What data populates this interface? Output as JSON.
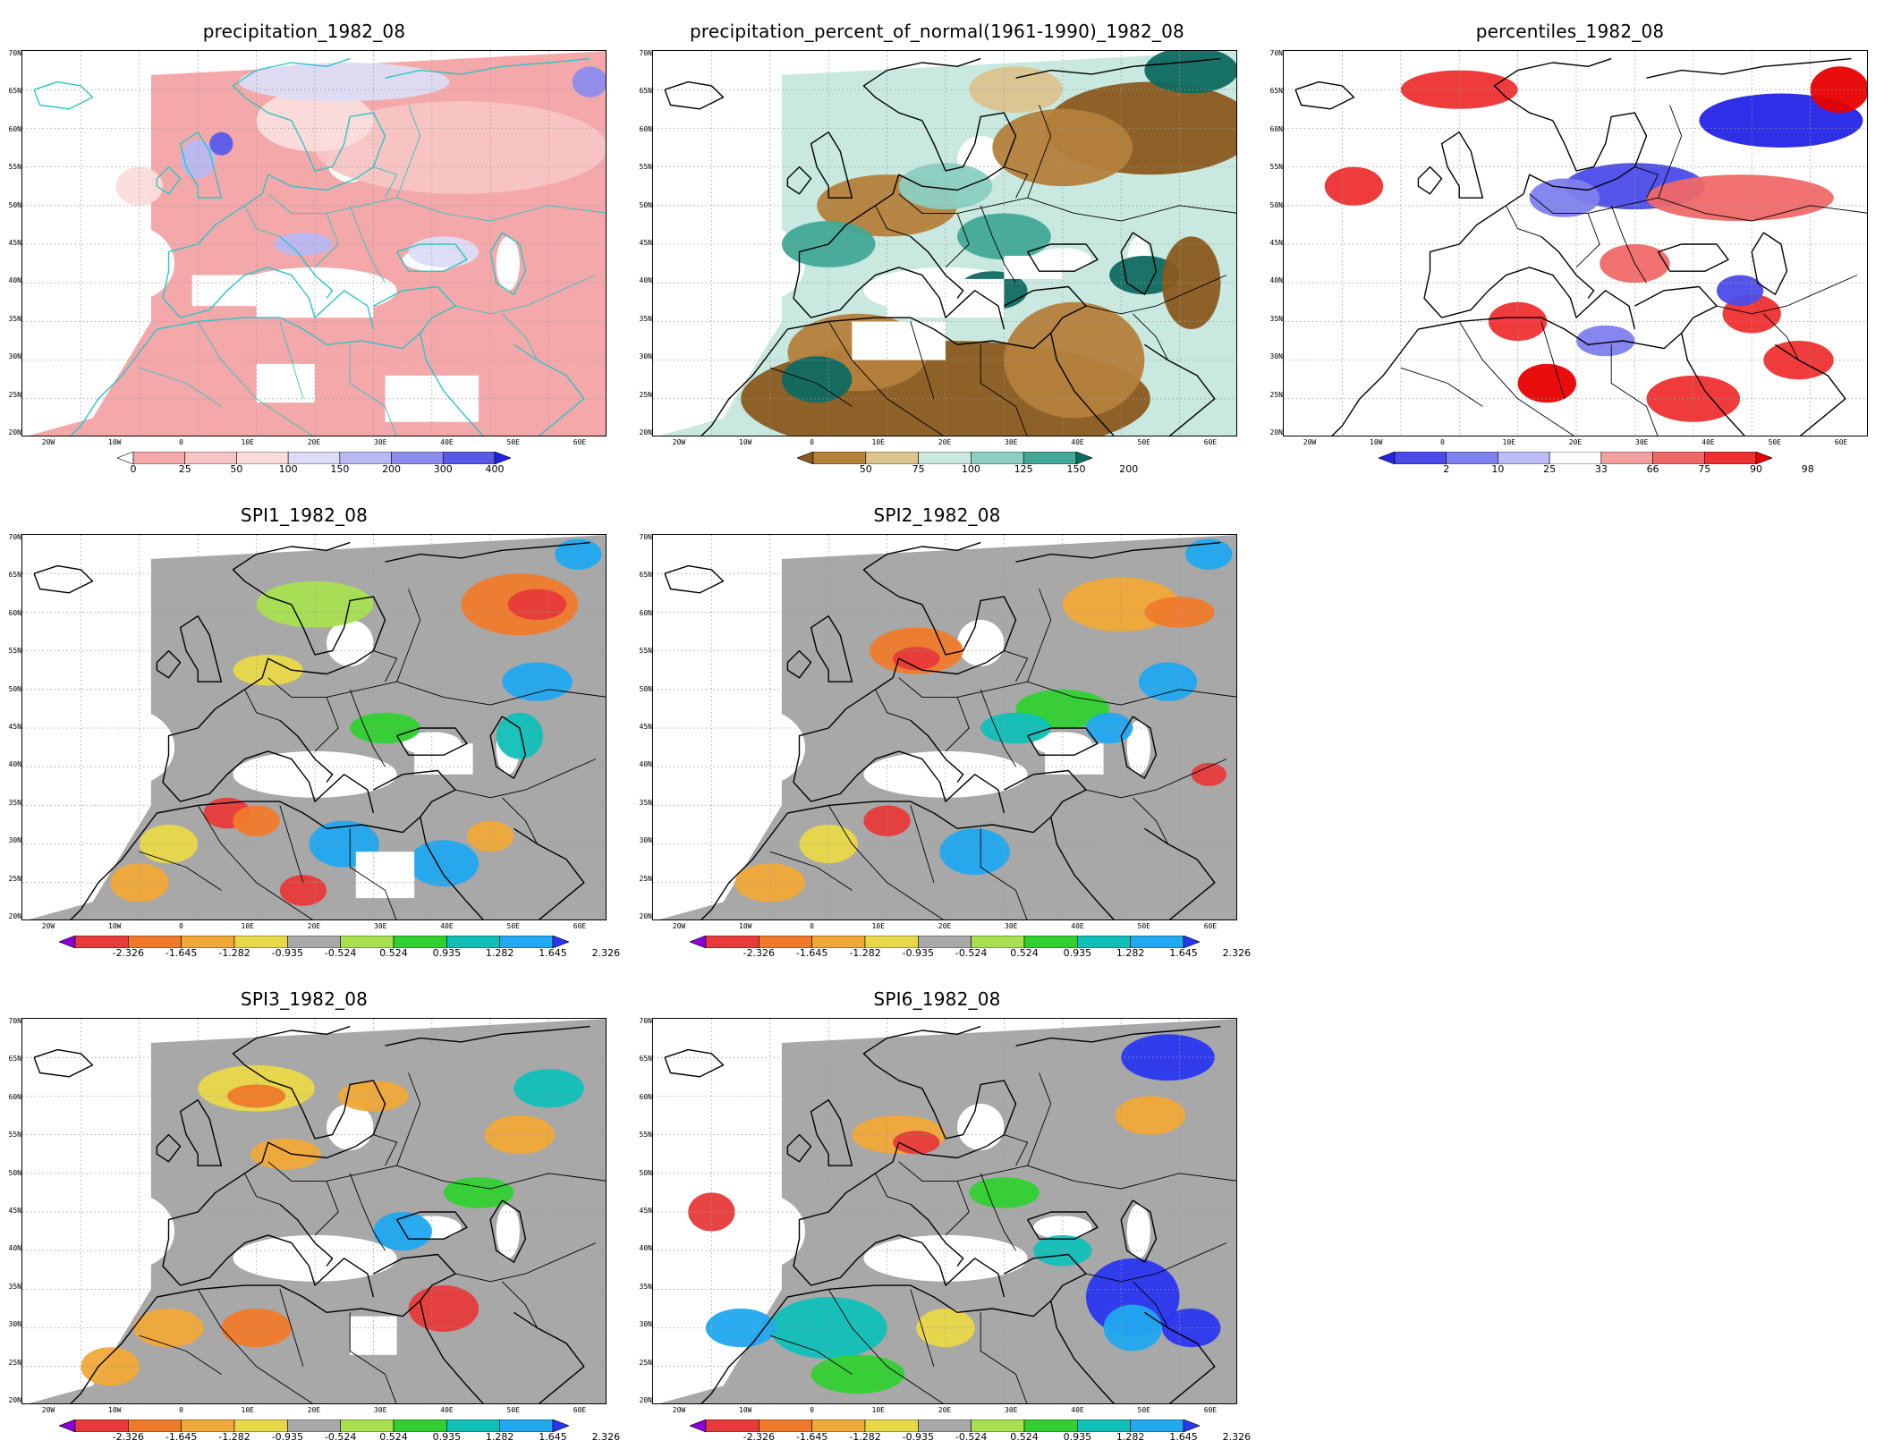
{
  "figure": {
    "month": "1982_08"
  },
  "lat_labels": [
    "70N",
    "65N",
    "60N",
    "55N",
    "50N",
    "45N",
    "40N",
    "35N",
    "30N",
    "25N",
    "20N"
  ],
  "lon_labels": [
    "20W",
    "10W",
    "0",
    "10E",
    "20E",
    "30E",
    "40E",
    "50E",
    "60E"
  ],
  "colors": {
    "precip": [
      "#f4a8aa",
      "#f8c4c4",
      "#fbdcdc",
      "#dcdcf6",
      "#b8b8f2",
      "#8c8cee",
      "#5a5aea",
      "#2222e0"
    ],
    "precip_ramp_start": "#ffffff",
    "percent": [
      "#8a5a1e",
      "#b5803a",
      "#dcc48e",
      "#c8e8e0",
      "#8ccfc2",
      "#42a896",
      "#0f6a60"
    ],
    "percentiles": [
      "#2424e6",
      "#4b4bea",
      "#8080f0",
      "#bcbcf6",
      "#ffffff",
      "#f4a0a0",
      "#f06868",
      "#ee3030",
      "#e80000"
    ],
    "spi": [
      "#8a00d8",
      "#e83a3a",
      "#f07a2a",
      "#f0a838",
      "#e8d848",
      "#a8a8a8",
      "#a8e050",
      "#30d030",
      "#10c0b8",
      "#20a8f0",
      "#2a36f0"
    ],
    "outline_first": "#2ec4c4",
    "outline": "#000000"
  },
  "panels": [
    {
      "id": "precipitation",
      "title": "precipitation_1982_08",
      "colorbar_type": "precip",
      "colorbar_labels": [
        "0",
        "25",
        "50",
        "100",
        "150",
        "200",
        "300",
        "400"
      ],
      "notes": "Mostly light pink over land; blue patches over Scandinavia, Alps, NW Europe"
    },
    {
      "id": "percent_of_normal",
      "title": "precipitation_percent_of_normal(1961-1990)_1982_08",
      "colorbar_type": "percent",
      "colorbar_labels": [
        "50",
        "75",
        "100",
        "125",
        "150",
        "200"
      ]
    },
    {
      "id": "percentiles",
      "title": "percentiles_1982_08",
      "colorbar_type": "percentiles",
      "colorbar_labels": [
        "2",
        "10",
        "25",
        "33",
        "66",
        "75",
        "90",
        "98"
      ]
    },
    {
      "id": "spi1",
      "title": "SPI1_1982_08",
      "colorbar_type": "spi",
      "colorbar_labels": [
        "-2.326",
        "-1.645",
        "-1.282",
        "-0.935",
        "-0.524",
        "0.524",
        "0.935",
        "1.282",
        "1.645",
        "2.326"
      ]
    },
    {
      "id": "spi2",
      "title": "SPI2_1982_08",
      "colorbar_type": "spi",
      "colorbar_labels": [
        "-2.326",
        "-1.645",
        "-1.282",
        "-0.935",
        "-0.524",
        "0.524",
        "0.935",
        "1.282",
        "1.645",
        "2.326"
      ]
    },
    {
      "id": "spi3",
      "title": "SPI3_1982_08",
      "colorbar_type": "spi",
      "colorbar_labels": [
        "-2.326",
        "-1.645",
        "-1.282",
        "-0.935",
        "-0.524",
        "0.524",
        "0.935",
        "1.282",
        "1.645",
        "2.326"
      ]
    },
    {
      "id": "spi6",
      "title": "SPI6_1982_08",
      "colorbar_type": "spi",
      "colorbar_labels": [
        "-2.326",
        "-1.645",
        "-1.282",
        "-0.935",
        "-0.524",
        "0.524",
        "0.935",
        "1.282",
        "1.645",
        "2.326"
      ]
    }
  ]
}
